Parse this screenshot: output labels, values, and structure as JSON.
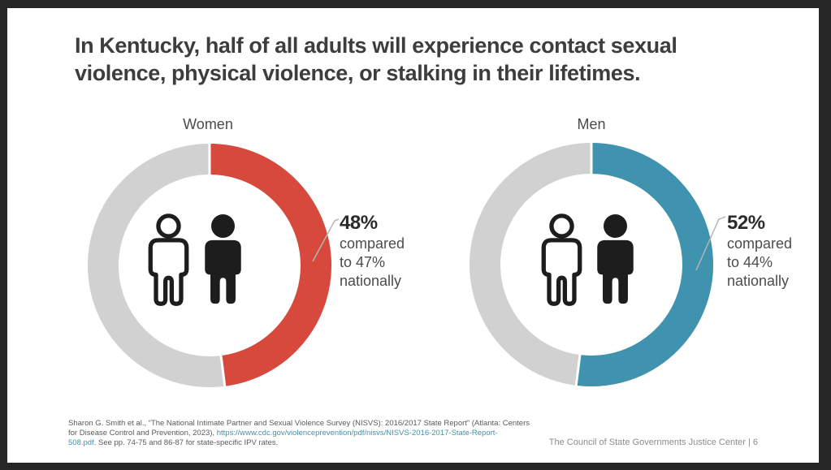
{
  "frame": {
    "background_color": "#262626",
    "slide_background_color": "#ffffff"
  },
  "title": {
    "lines": [
      "In Kentucky, half of all adults will experience contact sexual",
      "violence, physical violence, or stalking in their lifetimes."
    ],
    "color": "#3d3d3d"
  },
  "chart_data": {
    "type": "donut",
    "ring_background_color": "#d1d1d1",
    "start_angle_deg": 0,
    "direction": "clockwise",
    "charts": [
      {
        "label": "Women",
        "value_pct": 48,
        "color": "#d7493d",
        "callout_value": "48%",
        "callout_sub": "compared\nto 47%\nnationally",
        "national_pct": 47
      },
      {
        "label": "Men",
        "value_pct": 52,
        "color": "#3f93ae",
        "callout_value": "52%",
        "callout_sub": "compared\nto 44%\nnationally",
        "national_pct": 44
      }
    ]
  },
  "footer": {
    "citation": {
      "line1": "Sharon G. Smith et al., “The National Intimate Partner and Sexual Violence Survey (NISVS): 2016/2017 State Report” (Atlanta: Centers",
      "line2_text": "for Disease Control and Prevention, 2023), ",
      "line2_link": "https://www.cdc.gov/violenceprevention/pdf/nisvs/NISVS-2016-2017-State-Report-",
      "line3_link": "508.pdf",
      "line3_text": ". See pp. 74-75 and 86-87 for state-specific IPV rates.",
      "link_color": "#4690a8"
    },
    "branding": "The Council of State Governments Justice Center | 6"
  }
}
